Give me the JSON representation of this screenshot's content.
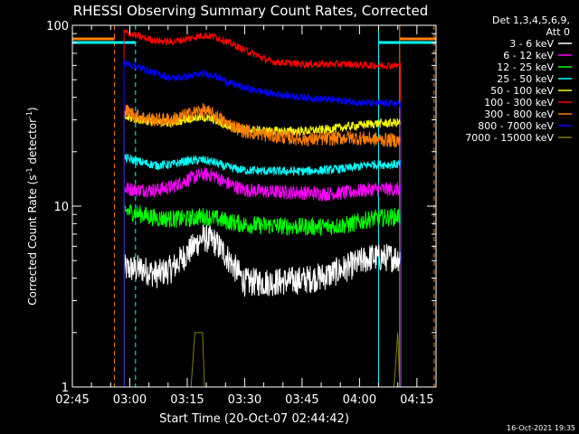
{
  "chart_data": {
    "type": "line",
    "title": "RHESSI Observing Summary Count Rates, Corrected",
    "xlabel": "Start Time (20-Oct-07 02:44:42)",
    "ylabel_main": "Corrected Count Rate (s",
    "ylabel_sup1": "-1",
    "ylabel_mid": " detector",
    "ylabel_sup2": "-1",
    "ylabel_end": ")",
    "y_scale": "log",
    "ylim": [
      1,
      100
    ],
    "xlim_minutes_after_0245": [
      0,
      95
    ],
    "x_tick_labels": [
      "02:45",
      "03:00",
      "03:15",
      "03:30",
      "03:45",
      "04:00",
      "04:15"
    ],
    "x_tick_minutes": [
      0,
      15,
      30,
      45,
      60,
      75,
      90
    ],
    "y_tick_labels": [
      "1",
      "10",
      "100"
    ],
    "y_tick_values": [
      1,
      10,
      100
    ],
    "legend_header": [
      "Det 1,3,4,5,6,9,",
      "Att 0"
    ],
    "legend_position": "right",
    "footer_date": "16-Oct-2021 19:35",
    "vertical_markers": [
      {
        "minute": 11.0,
        "style": "dashed",
        "color": "#ff7f00"
      },
      {
        "minute": 16.5,
        "style": "dashed",
        "color": "#00ffff"
      },
      {
        "minute": 80.0,
        "style": "solid",
        "color": "#00ffff"
      },
      {
        "minute": 85.5,
        "style": "solid",
        "color": "#ff7f00"
      },
      {
        "minute": 94.5,
        "style": "dashed",
        "color": "#ff7f00"
      }
    ],
    "series": [
      {
        "name": "3 - 6 keV",
        "color": "#ffffff",
        "noise": 0.08,
        "points": [
          [
            13.5,
            4.5
          ],
          [
            18,
            4.5
          ],
          [
            22,
            4.2
          ],
          [
            26,
            4.5
          ],
          [
            30,
            5.5
          ],
          [
            34,
            6.7
          ],
          [
            37,
            6.4
          ],
          [
            40,
            5.4
          ],
          [
            45,
            3.8
          ],
          [
            52,
            3.8
          ],
          [
            60,
            3.9
          ],
          [
            66,
            4.1
          ],
          [
            72,
            4.6
          ],
          [
            78,
            5.2
          ],
          [
            85.8,
            5.2
          ]
        ]
      },
      {
        "name": "6 - 12 keV",
        "color": "#ff00ff",
        "noise": 0.04,
        "points": [
          [
            13.5,
            12.5
          ],
          [
            18,
            12.3
          ],
          [
            22,
            12.3
          ],
          [
            26,
            12.8
          ],
          [
            30,
            14.0
          ],
          [
            34,
            15.0
          ],
          [
            37,
            14.8
          ],
          [
            40,
            13.5
          ],
          [
            45,
            12.3
          ],
          [
            52,
            12.0
          ],
          [
            60,
            11.9
          ],
          [
            66,
            11.7
          ],
          [
            72,
            11.9
          ],
          [
            78,
            12.4
          ],
          [
            85.8,
            12.4
          ]
        ]
      },
      {
        "name": "12 - 25 keV",
        "color": "#00ff00",
        "noise": 0.05,
        "points": [
          [
            13.5,
            9.5
          ],
          [
            18,
            9.0
          ],
          [
            22,
            8.6
          ],
          [
            26,
            8.5
          ],
          [
            30,
            8.5
          ],
          [
            34,
            8.8
          ],
          [
            37,
            8.6
          ],
          [
            40,
            8.3
          ],
          [
            45,
            7.9
          ],
          [
            52,
            7.8
          ],
          [
            60,
            7.7
          ],
          [
            66,
            7.7
          ],
          [
            72,
            7.9
          ],
          [
            78,
            8.5
          ],
          [
            85.8,
            8.8
          ]
        ]
      },
      {
        "name": "25 - 50 keV",
        "color": "#00ffff",
        "noise": 0.025,
        "points": [
          [
            13.5,
            18.5
          ],
          [
            18,
            17.5
          ],
          [
            22,
            16.8
          ],
          [
            26,
            17.0
          ],
          [
            30,
            17.8
          ],
          [
            34,
            18.0
          ],
          [
            37,
            17.5
          ],
          [
            40,
            16.5
          ],
          [
            45,
            15.8
          ],
          [
            52,
            15.6
          ],
          [
            60,
            15.6
          ],
          [
            66,
            15.8
          ],
          [
            72,
            16.2
          ],
          [
            78,
            17.0
          ],
          [
            85.8,
            17.0
          ]
        ]
      },
      {
        "name": "50 - 100 keV",
        "color": "#ffff00",
        "noise": 0.025,
        "points": [
          [
            13.5,
            31
          ],
          [
            18,
            30
          ],
          [
            22,
            29
          ],
          [
            26,
            29
          ],
          [
            30,
            30.5
          ],
          [
            34,
            31
          ],
          [
            37,
            30
          ],
          [
            40,
            28
          ],
          [
            45,
            26.5
          ],
          [
            52,
            26
          ],
          [
            60,
            26
          ],
          [
            66,
            26.5
          ],
          [
            72,
            27.5
          ],
          [
            78,
            28.5
          ],
          [
            85.8,
            29
          ]
        ]
      },
      {
        "name": "100 - 300 keV",
        "color": "#ff0000",
        "noise": 0.02,
        "points": [
          [
            13.5,
            92
          ],
          [
            18,
            86
          ],
          [
            22,
            82
          ],
          [
            26,
            81
          ],
          [
            30,
            84
          ],
          [
            34,
            88
          ],
          [
            37,
            87
          ],
          [
            40,
            82
          ],
          [
            45,
            73
          ],
          [
            52,
            63
          ],
          [
            60,
            61
          ],
          [
            66,
            61
          ],
          [
            72,
            61
          ],
          [
            78,
            60
          ],
          [
            85.8,
            60
          ]
        ]
      },
      {
        "name": "300 - 800 keV",
        "color": "#ff7f00",
        "noise": 0.04,
        "points": [
          [
            13.5,
            34
          ],
          [
            18,
            31
          ],
          [
            22,
            30
          ],
          [
            26,
            30
          ],
          [
            30,
            32
          ],
          [
            34,
            34
          ],
          [
            37,
            32
          ],
          [
            40,
            29
          ],
          [
            45,
            26
          ],
          [
            52,
            24.5
          ],
          [
            60,
            23.5
          ],
          [
            66,
            23.5
          ],
          [
            72,
            24
          ],
          [
            78,
            23.5
          ],
          [
            85.8,
            23
          ]
        ]
      },
      {
        "name": "800 - 7000 keV",
        "color": "#0000ff",
        "noise": 0.02,
        "points": [
          [
            13.5,
            62
          ],
          [
            18,
            58
          ],
          [
            22,
            54
          ],
          [
            26,
            51
          ],
          [
            30,
            52
          ],
          [
            34,
            54
          ],
          [
            37,
            53
          ],
          [
            40,
            49
          ],
          [
            45,
            45
          ],
          [
            52,
            42
          ],
          [
            60,
            40
          ],
          [
            66,
            39
          ],
          [
            72,
            38
          ],
          [
            78,
            37
          ],
          [
            85.8,
            37
          ]
        ]
      },
      {
        "name": "7000 - 15000 keV",
        "color": "#7f7f00",
        "noise": 0.0,
        "points": [
          [
            29,
            1.0
          ],
          [
            31,
            1.0
          ],
          [
            32,
            2.0
          ],
          [
            34,
            2.0
          ],
          [
            34.5,
            1.0
          ],
          [
            84,
            1.0
          ],
          [
            85,
            2.0
          ],
          [
            85.5,
            1.0
          ]
        ]
      }
    ]
  }
}
